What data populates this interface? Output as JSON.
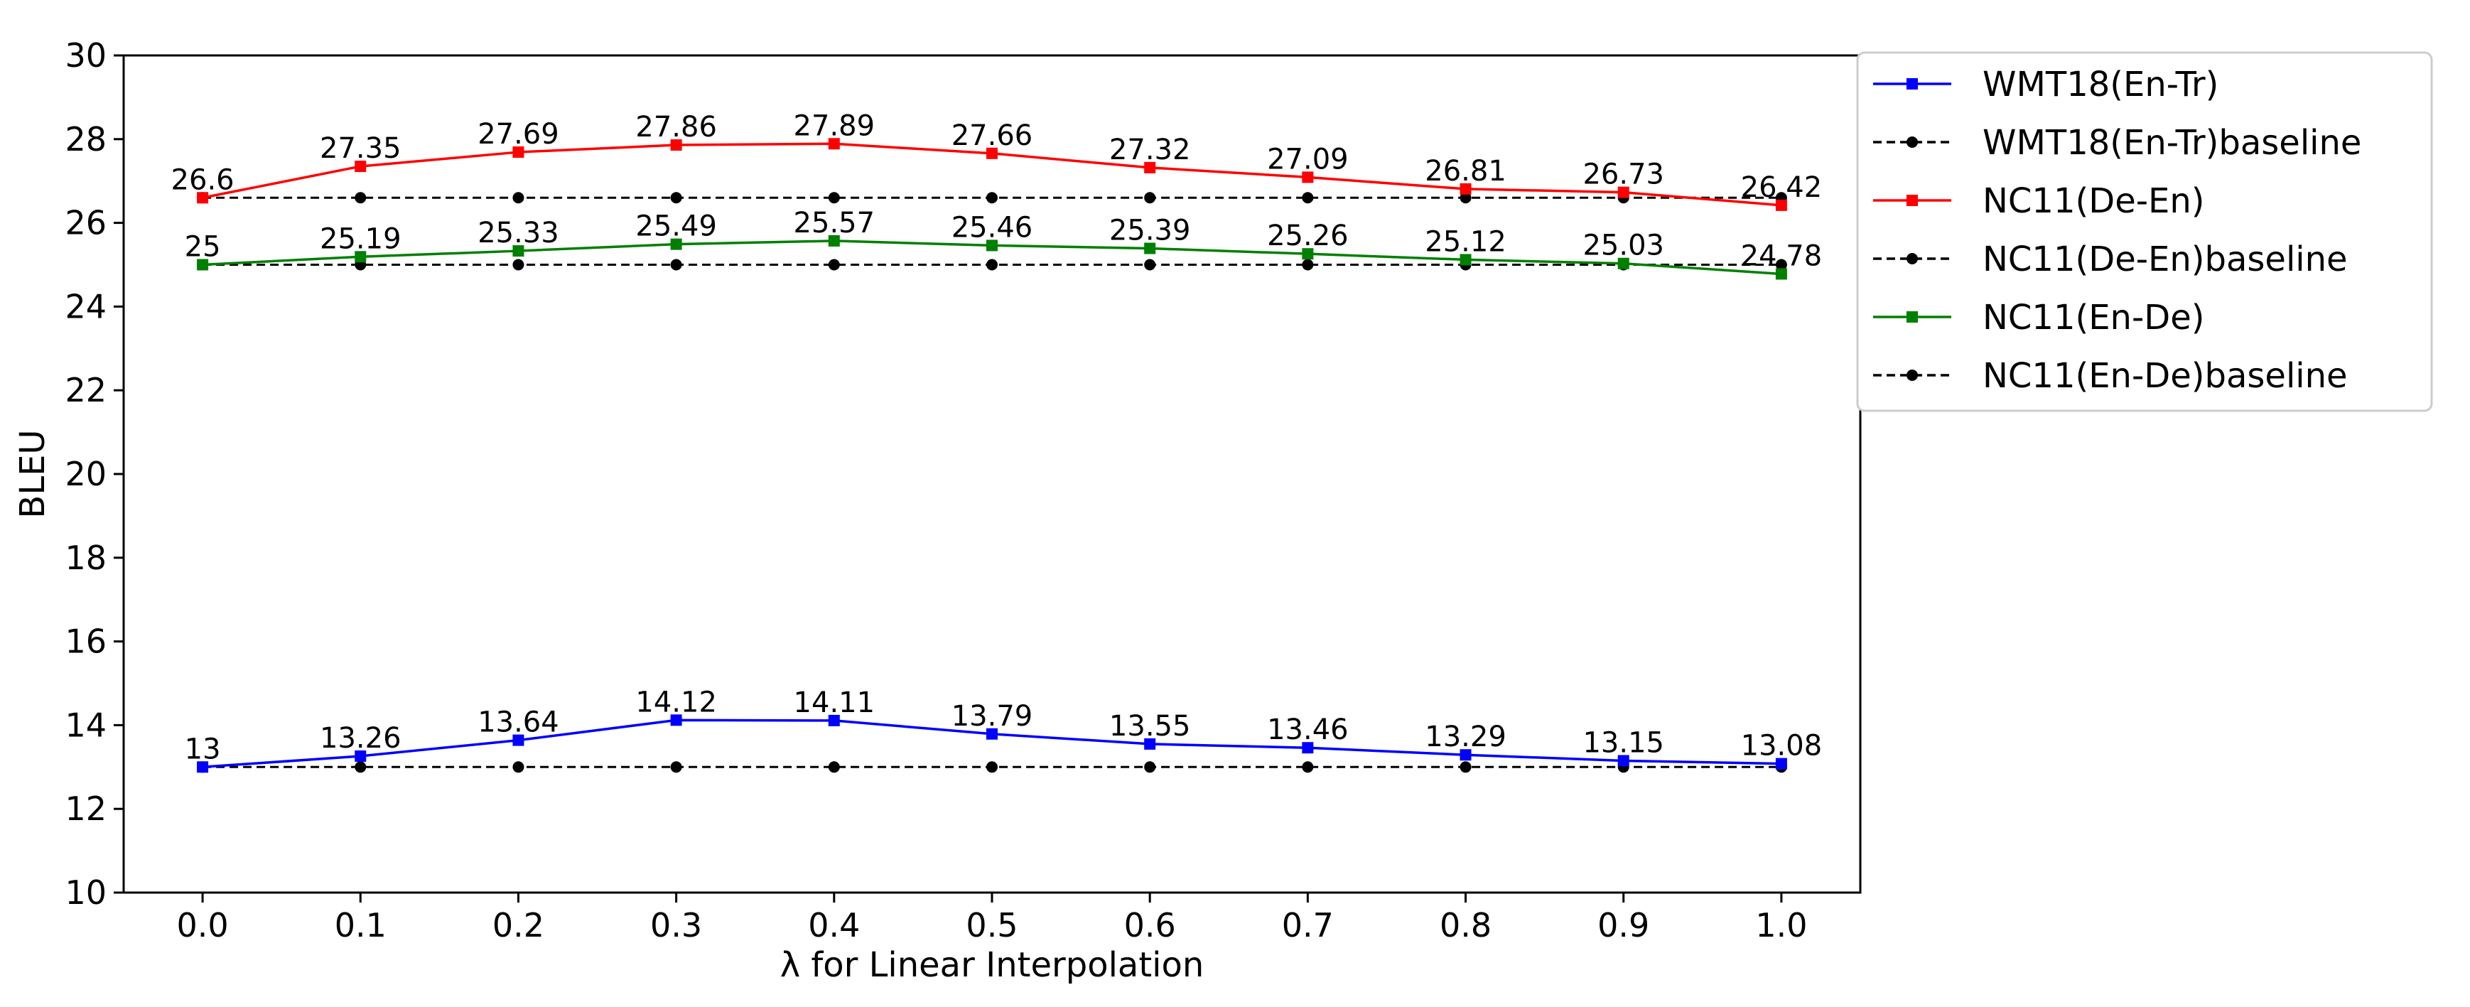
{
  "chart_data": {
    "type": "line",
    "title": "",
    "xlabel": "λ for Linear Interpolation",
    "ylabel": "BLEU",
    "x": [
      0.0,
      0.1,
      0.2,
      0.3,
      0.4,
      0.5,
      0.6,
      0.7,
      0.8,
      0.9,
      1.0
    ],
    "x_tick_labels": [
      "0.0",
      "0.1",
      "0.2",
      "0.3",
      "0.4",
      "0.5",
      "0.6",
      "0.7",
      "0.8",
      "0.9",
      "1.0"
    ],
    "y_ticks": [
      10,
      12,
      14,
      16,
      18,
      20,
      22,
      24,
      26,
      28,
      30
    ],
    "y_tick_labels": [
      "10",
      "12",
      "14",
      "16",
      "18",
      "20",
      "22",
      "24",
      "26",
      "28",
      "30"
    ],
    "xlim": [
      -0.05,
      1.05
    ],
    "ylim": [
      10,
      30
    ],
    "grid": false,
    "legend_position": "outside-top-right",
    "series": [
      {
        "name": "WMT18(En-Tr)",
        "color": "#0000ff",
        "style": "solid",
        "marker": "square",
        "values": [
          13.0,
          13.26,
          13.64,
          14.12,
          14.11,
          13.79,
          13.55,
          13.46,
          13.29,
          13.15,
          13.08
        ],
        "labels": [
          "13",
          "13.26",
          "13.64",
          "14.12",
          "14.11",
          "13.79",
          "13.55",
          "13.46",
          "13.29",
          "13.15",
          "13.08"
        ]
      },
      {
        "name": "WMT18(En-Tr)baseline",
        "color": "#000000",
        "style": "dashed",
        "marker": "circle",
        "values": [
          13,
          13,
          13,
          13,
          13,
          13,
          13,
          13,
          13,
          13,
          13
        ]
      },
      {
        "name": "NC11(De-En)",
        "color": "#ff0000",
        "style": "solid",
        "marker": "square",
        "values": [
          26.6,
          27.35,
          27.69,
          27.86,
          27.89,
          27.66,
          27.32,
          27.09,
          26.81,
          26.73,
          26.42
        ],
        "labels": [
          "26.6",
          "27.35",
          "27.69",
          "27.86",
          "27.89",
          "27.66",
          "27.32",
          "27.09",
          "26.81",
          "26.73",
          "26.42"
        ]
      },
      {
        "name": "NC11(De-En)baseline",
        "color": "#000000",
        "style": "dashed",
        "marker": "circle",
        "values": [
          26.6,
          26.6,
          26.6,
          26.6,
          26.6,
          26.6,
          26.6,
          26.6,
          26.6,
          26.6,
          26.6
        ]
      },
      {
        "name": "NC11(En-De)",
        "color": "#008000",
        "style": "solid",
        "marker": "square",
        "values": [
          25.0,
          25.19,
          25.33,
          25.49,
          25.57,
          25.46,
          25.39,
          25.26,
          25.12,
          25.03,
          24.78
        ],
        "labels": [
          "25",
          "25.19",
          "25.33",
          "25.49",
          "25.57",
          "25.46",
          "25.39",
          "25.26",
          "25.12",
          "25.03",
          "24.78"
        ]
      },
      {
        "name": "NC11(En-De)baseline",
        "color": "#000000",
        "style": "dashed",
        "marker": "circle",
        "values": [
          25,
          25,
          25,
          25,
          25,
          25,
          25,
          25,
          25,
          25,
          25
        ]
      }
    ]
  }
}
